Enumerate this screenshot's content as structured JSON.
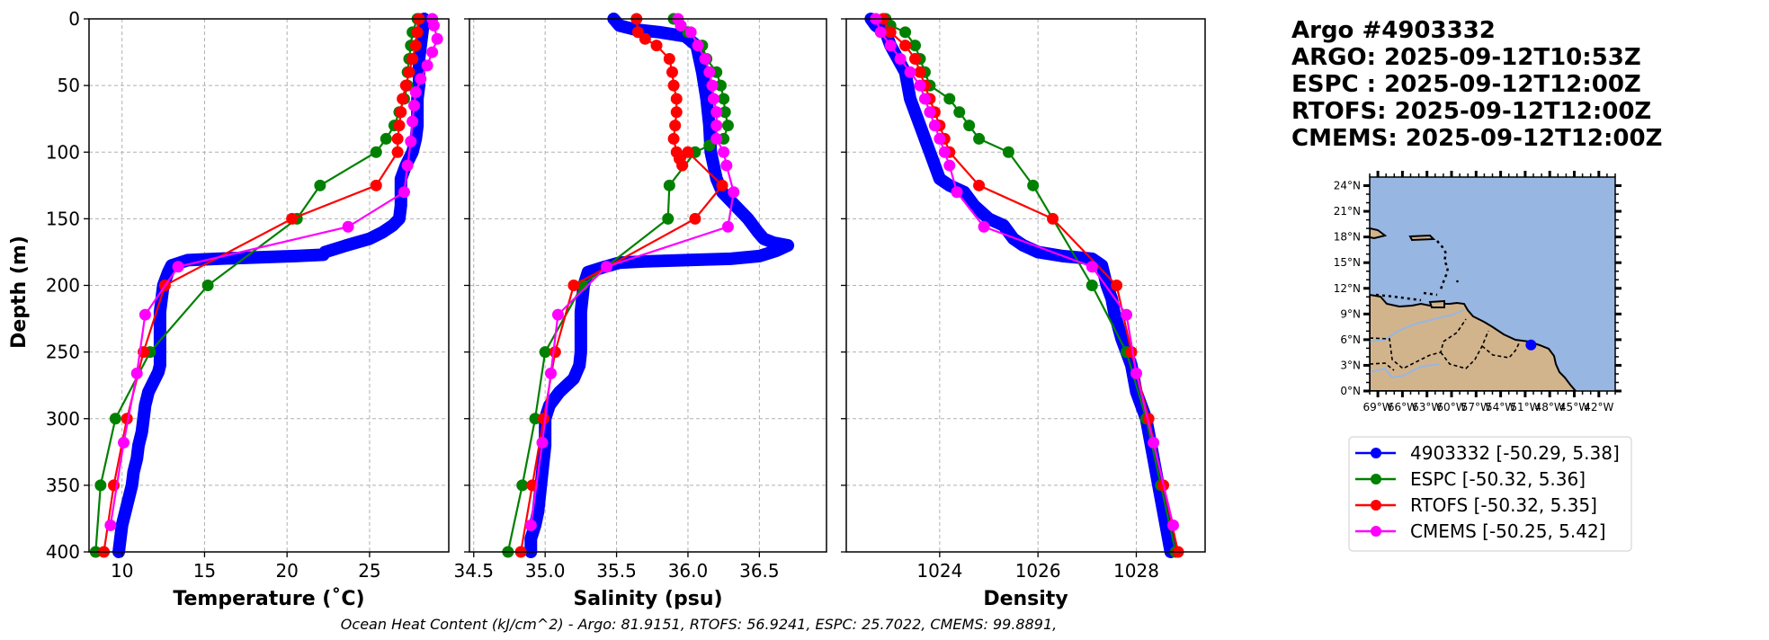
{
  "chart_data": [
    {
      "type": "line",
      "panel": "temperature",
      "xlabel": "Temperature (˚C)",
      "ylabel": "Depth (m)",
      "xlim": [
        8,
        29.8
      ],
      "ylim": [
        400,
        0
      ],
      "xticks": [
        10,
        15,
        20,
        25
      ],
      "yticks": [
        0,
        50,
        100,
        150,
        200,
        250,
        300,
        350,
        400
      ],
      "grid": true,
      "series": [
        {
          "name": "4903332",
          "color": "#0000ff",
          "thick": true,
          "x": [
            28.3,
            28.2,
            28.1,
            28.0,
            28.0,
            28.0,
            27.9,
            27.9,
            27.9,
            27.8,
            27.6,
            27.2,
            26.9,
            26.9,
            26.9,
            26.8,
            26.4,
            25.8,
            25.0,
            23.6,
            22.3,
            22.2,
            20.5,
            15.8,
            14.0,
            13.0,
            12.8,
            12.5,
            12.4,
            12.3,
            12.3,
            12.3,
            12.3,
            12.3,
            12.2,
            12.0,
            11.6,
            11.4,
            11.3,
            11.2,
            11.0,
            10.9,
            10.7,
            10.6,
            10.4,
            10.2,
            10.0,
            9.9,
            9.8
          ],
          "y": [
            0,
            10,
            20,
            30,
            40,
            50,
            60,
            70,
            80,
            90,
            100,
            110,
            120,
            130,
            140,
            150,
            155,
            160,
            165,
            170,
            175,
            177,
            178,
            180,
            181,
            185,
            190,
            200,
            210,
            220,
            230,
            240,
            250,
            260,
            265,
            270,
            280,
            290,
            300,
            310,
            320,
            330,
            340,
            350,
            360,
            370,
            380,
            390,
            400
          ]
        },
        {
          "name": "ESPC",
          "color": "#008000",
          "thick": false,
          "x": [
            27.9,
            27.6,
            27.5,
            27.4,
            27.3,
            27.3,
            27.1,
            26.8,
            26.5,
            26.0,
            25.4,
            22.0,
            20.6,
            15.2,
            11.7,
            9.6,
            8.7,
            8.4
          ],
          "y": [
            0,
            10,
            20,
            30,
            40,
            50,
            60,
            70,
            80,
            90,
            100,
            125,
            150,
            200,
            250,
            300,
            350,
            400
          ]
        },
        {
          "name": "RTOFS",
          "color": "#ff0000",
          "thick": false,
          "x": [
            28.0,
            27.9,
            27.8,
            27.6,
            27.4,
            27.2,
            27.0,
            26.9,
            26.8,
            26.7,
            26.7,
            25.4,
            20.3,
            12.6,
            11.3,
            10.3,
            9.5,
            8.9
          ],
          "y": [
            0,
            10,
            20,
            30,
            40,
            50,
            60,
            70,
            80,
            90,
            100,
            125,
            150,
            200,
            250,
            300,
            350,
            400
          ]
        },
        {
          "name": "CMEMS",
          "color": "#ff00ff",
          "thick": false,
          "x": [
            28.8,
            28.9,
            29.1,
            28.8,
            28.5,
            28.1,
            27.8,
            27.7,
            27.6,
            27.5,
            27.3,
            27.1,
            23.7,
            13.4,
            11.4,
            10.9,
            10.1,
            9.3
          ],
          "y": [
            0,
            5,
            15,
            25,
            35,
            45,
            55,
            65,
            77,
            92,
            110,
            130,
            156,
            186,
            222,
            266,
            318,
            380
          ]
        }
      ]
    },
    {
      "type": "line",
      "panel": "salinity",
      "xlabel": "Salinity (psu)",
      "xlim": [
        34.47,
        36.97
      ],
      "ylim": [
        400,
        0
      ],
      "xticks": [
        "34.5",
        "35.0",
        "35.5",
        "36.0",
        "36.5"
      ],
      "xtick_values": [
        34.5,
        35.0,
        35.5,
        36.0,
        36.5
      ],
      "grid": true,
      "series": [
        {
          "name": "4903332",
          "color": "#0000ff",
          "thick": true,
          "x": [
            35.48,
            35.52,
            35.63,
            35.8,
            35.98,
            36.06,
            36.1,
            36.13,
            36.15,
            36.16,
            36.18,
            36.2,
            36.24,
            36.33,
            36.42,
            36.49,
            36.53,
            36.6,
            36.7,
            36.62,
            36.5,
            36.3,
            35.7,
            35.52,
            35.42,
            35.3,
            35.27,
            35.25,
            35.25,
            35.25,
            35.24,
            35.2,
            35.1,
            35.03,
            35.0,
            35.0,
            34.98,
            34.96,
            34.95,
            34.93,
            34.9,
            34.9
          ],
          "y": [
            0,
            5,
            8,
            10,
            13,
            20,
            40,
            60,
            80,
            100,
            110,
            120,
            130,
            140,
            150,
            160,
            165,
            168,
            170,
            174,
            178,
            180,
            182,
            183,
            186,
            190,
            200,
            220,
            240,
            250,
            260,
            270,
            280,
            290,
            300,
            320,
            340,
            360,
            370,
            380,
            390,
            400
          ]
        },
        {
          "name": "ESPC",
          "color": "#008000",
          "thick": false,
          "x": [
            35.9,
            35.95,
            36.0,
            36.1,
            36.13,
            36.2,
            36.23,
            36.25,
            36.26,
            36.28,
            36.25,
            36.15,
            36.05,
            35.87,
            35.86,
            35.26,
            35.0,
            34.93,
            34.84,
            34.74
          ],
          "y": [
            0,
            5,
            10,
            20,
            30,
            40,
            50,
            60,
            70,
            80,
            90,
            95,
            100,
            125,
            150,
            200,
            250,
            300,
            350,
            400
          ]
        },
        {
          "name": "RTOFS",
          "color": "#ff0000",
          "thick": false,
          "x": [
            35.64,
            35.65,
            35.7,
            35.78,
            35.87,
            35.89,
            35.9,
            35.92,
            35.92,
            35.91,
            35.9,
            35.92,
            35.94,
            35.96,
            36.0,
            36.24,
            36.05,
            35.2,
            35.07,
            34.99,
            34.91,
            34.83
          ],
          "y": [
            0,
            10,
            15,
            20,
            30,
            40,
            50,
            60,
            70,
            80,
            90,
            100,
            105,
            110,
            100,
            125,
            150,
            200,
            250,
            300,
            350,
            400
          ]
        },
        {
          "name": "CMEMS",
          "color": "#ff00ff",
          "thick": false,
          "x": [
            35.93,
            35.95,
            36.02,
            36.07,
            36.12,
            36.15,
            36.17,
            36.18,
            36.2,
            36.2,
            36.2,
            36.25,
            36.27,
            36.32,
            36.28,
            35.43,
            35.09,
            35.04,
            34.98,
            34.9
          ],
          "y": [
            0,
            5,
            10,
            20,
            30,
            40,
            50,
            60,
            70,
            80,
            90,
            100,
            110,
            130,
            156,
            186,
            222,
            266,
            318,
            380
          ]
        }
      ]
    },
    {
      "type": "line",
      "panel": "density",
      "xlabel": "Density",
      "xlim": [
        1022.1,
        1029.4
      ],
      "ylim": [
        400,
        0
      ],
      "xticks": [
        "1024",
        "1026",
        "1028"
      ],
      "xtick_values": [
        1024,
        1026,
        1028
      ],
      "grid": true,
      "series": [
        {
          "name": "4903332",
          "color": "#0000ff",
          "thick": true,
          "x": [
            1022.6,
            1022.7,
            1022.9,
            1023.0,
            1023.15,
            1023.3,
            1023.35,
            1023.4,
            1023.5,
            1023.6,
            1023.7,
            1023.8,
            1023.9,
            1024.0,
            1024.2,
            1024.5,
            1024.7,
            1025.0,
            1025.3,
            1025.5,
            1025.7,
            1026.0,
            1026.5,
            1027.1,
            1027.3,
            1027.4,
            1027.5,
            1027.55,
            1027.7,
            1027.8,
            1027.9,
            1028.0,
            1028.1,
            1028.2,
            1028.3,
            1028.4,
            1028.5,
            1028.6,
            1028.7
          ],
          "y": [
            0,
            5,
            10,
            20,
            30,
            40,
            50,
            60,
            70,
            80,
            90,
            100,
            110,
            120,
            125,
            130,
            140,
            150,
            155,
            165,
            170,
            175,
            178,
            180,
            185,
            200,
            210,
            220,
            240,
            250,
            260,
            280,
            290,
            300,
            320,
            340,
            360,
            380,
            400
          ]
        },
        {
          "name": "ESPC",
          "color": "#008000",
          "thick": false,
          "x": [
            1022.9,
            1023.0,
            1023.3,
            1023.5,
            1023.6,
            1023.7,
            1023.8,
            1024.2,
            1024.4,
            1024.6,
            1024.8,
            1025.4,
            1025.9,
            1027.1,
            1027.8,
            1028.2,
            1028.5,
            1028.8
          ],
          "y": [
            0,
            5,
            10,
            20,
            30,
            40,
            50,
            60,
            70,
            80,
            90,
            100,
            125,
            200,
            250,
            300,
            350,
            400
          ]
        },
        {
          "name": "RTOFS",
          "color": "#ff0000",
          "thick": false,
          "x": [
            1022.85,
            1023.0,
            1023.3,
            1023.5,
            1023.6,
            1023.7,
            1023.8,
            1023.9,
            1024.0,
            1024.1,
            1024.2,
            1024.8,
            1026.3,
            1027.6,
            1027.9,
            1028.25,
            1028.55,
            1028.85
          ],
          "y": [
            0,
            10,
            20,
            30,
            40,
            50,
            60,
            70,
            80,
            90,
            100,
            125,
            150,
            200,
            250,
            300,
            350,
            400
          ]
        },
        {
          "name": "CMEMS",
          "color": "#ff00ff",
          "thick": false,
          "x": [
            1022.7,
            1022.8,
            1023.0,
            1023.2,
            1023.4,
            1023.6,
            1023.7,
            1023.8,
            1023.9,
            1024.0,
            1024.1,
            1024.2,
            1024.35,
            1024.9,
            1027.1,
            1027.8,
            1028.0,
            1028.35,
            1028.75
          ],
          "y": [
            0,
            10,
            20,
            30,
            40,
            50,
            60,
            70,
            80,
            90,
            100,
            110,
            130,
            156,
            186,
            222,
            266,
            318,
            380
          ]
        }
      ]
    }
  ],
  "info": {
    "lines": [
      "Argo #4903332",
      "ARGO: 2025-09-12T10:53Z",
      "ESPC : 2025-09-12T12:00Z",
      "RTOFS: 2025-09-12T12:00Z",
      "CMEMS: 2025-09-12T12:00Z"
    ]
  },
  "map": {
    "lon_range": [
      -70,
      -40
    ],
    "lat_range": [
      0,
      25
    ],
    "lat_ticks": [
      "0°N",
      "3°N",
      "6°N",
      "9°N",
      "12°N",
      "15°N",
      "18°N",
      "21°N",
      "24°N"
    ],
    "lon_ticks": [
      "69°W",
      "66°W",
      "63°W",
      "60°W",
      "57°W",
      "54°W",
      "51°W",
      "48°W",
      "45°W",
      "42°W"
    ],
    "ocean_color": "#97b6e1",
    "land_color": "#d2b48c",
    "float_position": {
      "lon": -50.29,
      "lat": 5.38,
      "color": "#0000ff"
    }
  },
  "legend": {
    "items": [
      {
        "label": "4903332 [-50.29, 5.38]",
        "color": "#0000ff"
      },
      {
        "label": "ESPC [-50.32, 5.36]",
        "color": "#008000"
      },
      {
        "label": "RTOFS [-50.32, 5.35]",
        "color": "#ff0000"
      },
      {
        "label": "CMEMS [-50.25, 5.42]",
        "color": "#ff00ff"
      }
    ]
  },
  "footer": "Ocean Heat Content (kJ/cm^2) - Argo: 81.9151,  RTOFS: 56.9241,  ESPC: 25.7022,  CMEMS: 99.8891,"
}
